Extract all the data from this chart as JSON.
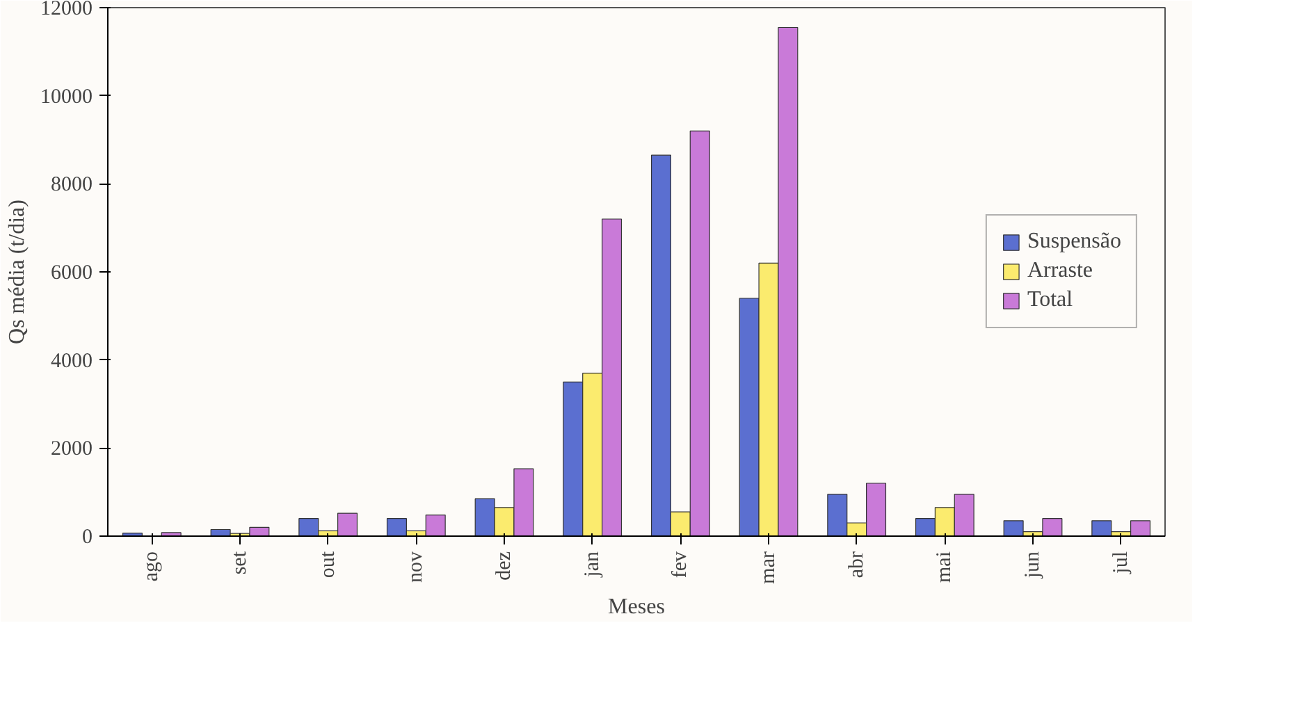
{
  "chart_data": {
    "type": "bar",
    "xlabel": "Meses",
    "ylabel": "Qs média (t/dia)",
    "categories": [
      "ago",
      "set",
      "out",
      "nov",
      "dez",
      "jan",
      "fev",
      "mar",
      "abr",
      "mai",
      "jun",
      "jul"
    ],
    "series": [
      {
        "name": "Suspensão",
        "color": "#5b6fd0",
        "values": [
          70,
          150,
          400,
          400,
          850,
          3500,
          8650,
          5400,
          950,
          400,
          350,
          350
        ]
      },
      {
        "name": "Arraste",
        "color": "#fbeb6e",
        "values": [
          null,
          60,
          120,
          120,
          650,
          3700,
          550,
          6200,
          300,
          650,
          100,
          100
        ]
      },
      {
        "name": "Total",
        "color": "#c97ad8",
        "values": [
          80,
          200,
          520,
          480,
          1530,
          7200,
          9200,
          11550,
          1200,
          950,
          400,
          350
        ]
      }
    ],
    "ylim": [
      0,
      12000
    ],
    "yticks": [
      0,
      2000,
      4000,
      6000,
      8000,
      10000,
      12000
    ],
    "grid": false,
    "legend": "right"
  }
}
